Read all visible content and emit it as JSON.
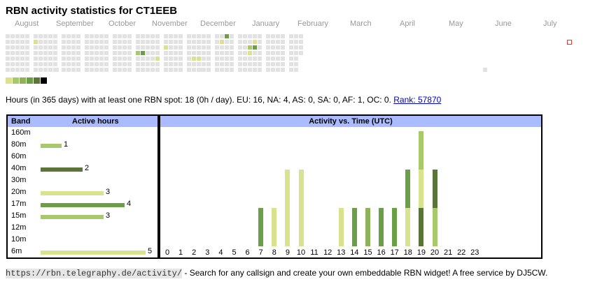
{
  "title": "RBN activity statistics for CT1EEB",
  "months": [
    "August",
    "September",
    "October",
    "November",
    "December",
    "January",
    "February",
    "March",
    "April",
    "May",
    "June",
    "July"
  ],
  "colors": {
    "empty": "#e2e2e2",
    "l1": "#d9e38f",
    "l2": "#a8c86c",
    "l3": "#8cb35a",
    "l4": "#6a9f46",
    "l5": "#5b7438",
    "l6": "#000000",
    "header_bg": "#aabbff",
    "marker": "#e33333"
  },
  "legend_levels": [
    "#d9e38f",
    "#a8c86c",
    "#8cb35a",
    "#6a9f46",
    "#5b7438",
    "#000000"
  ],
  "summary": {
    "text": "Hours (in 365 days) with at least one RBN spot: 18 (0h / day). EU: 16, NA: 4, AS: 0, SA: 0, AF: 1, OC: 0.",
    "rank_label": "Rank: 57870"
  },
  "band_table": {
    "col_band": "Band",
    "col_hours": "Active hours",
    "bands": [
      {
        "name": "160m",
        "hours": 0,
        "color": "#d9e38f"
      },
      {
        "name": "80m",
        "hours": 1,
        "color": "#a8c86c"
      },
      {
        "name": "60m",
        "hours": 0,
        "color": "#d9e38f"
      },
      {
        "name": "40m",
        "hours": 2,
        "color": "#5b7438"
      },
      {
        "name": "30m",
        "hours": 0,
        "color": "#d9e38f"
      },
      {
        "name": "20m",
        "hours": 3,
        "color": "#d9e38f"
      },
      {
        "name": "17m",
        "hours": 4,
        "color": "#6a9f46"
      },
      {
        "name": "15m",
        "hours": 3,
        "color": "#a8c86c"
      },
      {
        "name": "12m",
        "hours": 0,
        "color": "#d9e38f"
      },
      {
        "name": "10m",
        "hours": 0,
        "color": "#d9e38f"
      },
      {
        "name": "6m",
        "hours": 5,
        "color": "#d9e38f"
      }
    ]
  },
  "time_chart": {
    "title": "Activity vs. Time (UTC)",
    "hours": [
      "0",
      "1",
      "2",
      "3",
      "4",
      "5",
      "6",
      "7",
      "8",
      "9",
      "10",
      "11",
      "12",
      "13",
      "14",
      "15",
      "16",
      "17",
      "18",
      "19",
      "20",
      "21",
      "22",
      "23"
    ],
    "stacks": [
      [],
      [],
      [],
      [],
      [],
      [],
      [],
      [
        {
          "v": 1,
          "c": "#6a9f46"
        }
      ],
      [
        {
          "v": 1,
          "c": "#d9e38f"
        }
      ],
      [
        {
          "v": 2,
          "c": "#d9e38f"
        }
      ],
      [
        {
          "v": 2,
          "c": "#d9e38f"
        }
      ],
      [],
      [],
      [
        {
          "v": 1,
          "c": "#d9e38f"
        }
      ],
      [
        {
          "v": 1,
          "c": "#6a9f46"
        }
      ],
      [
        {
          "v": 1,
          "c": "#8cb35a"
        }
      ],
      [
        {
          "v": 1,
          "c": "#6a9f46"
        }
      ],
      [
        {
          "v": 1,
          "c": "#6a9f46"
        }
      ],
      [
        {
          "v": 1,
          "c": "#d9e38f"
        },
        {
          "v": 1,
          "c": "#6a9f46"
        }
      ],
      [
        {
          "v": 1,
          "c": "#5b7438"
        },
        {
          "v": 1,
          "c": "#d9e38f"
        },
        {
          "v": 1,
          "c": "#a8c86c"
        }
      ],
      [
        {
          "v": 1,
          "c": "#a8c86c"
        },
        {
          "v": 1,
          "c": "#5b7438"
        }
      ],
      [],
      [],
      []
    ]
  },
  "calendar_active": [
    {
      "w": 5,
      "d": 1,
      "c": "#d9e38f"
    },
    {
      "w": 23,
      "d": 3,
      "c": "#a8c86c"
    },
    {
      "w": 24,
      "d": 3,
      "c": "#6a9f46"
    },
    {
      "w": 27,
      "d": 4,
      "c": "#d9e38f"
    },
    {
      "w": 28,
      "d": 2,
      "c": "#d9e38f"
    },
    {
      "w": 33,
      "d": 4,
      "c": "#d9e38f"
    },
    {
      "w": 34,
      "d": 4,
      "c": "#d9e38f"
    },
    {
      "w": 39,
      "d": 0,
      "c": "#6a9f46"
    },
    {
      "w": 38,
      "d": 1,
      "c": "#d9e38f"
    },
    {
      "w": 43,
      "d": 2,
      "c": "#a8c86c"
    },
    {
      "w": 44,
      "d": 1,
      "c": "#d9e38f"
    },
    {
      "w": 43,
      "d": 3,
      "c": "#d9e38f"
    },
    {
      "w": 44,
      "d": 2,
      "c": "#6a9f46"
    }
  ],
  "footer": {
    "link": "https://rbn.telegraphy.de/activity/",
    "text": " - Search for any callsign and create your own embeddable RBN widget! A free service by DJ5CW."
  }
}
